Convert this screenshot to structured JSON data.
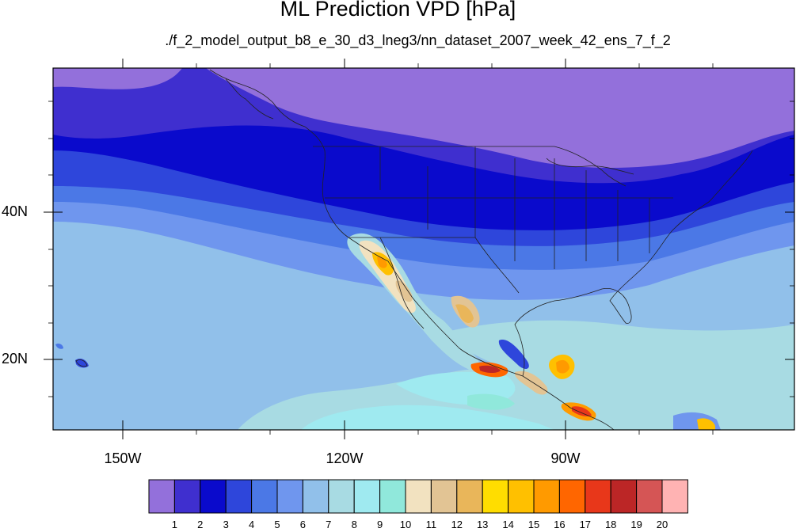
{
  "title": "ML Prediction VPD [hPa]",
  "subtitle": "./f_2_model_output_b8_e_30_d3_lneg3/nn_dataset_2007_week_42_ens_7_f_2",
  "map": {
    "lat_labels": [
      "40N",
      "20N"
    ],
    "lon_labels": [
      "150W",
      "120W",
      "90W"
    ]
  },
  "colorbar": {
    "ticks": [
      "1",
      "2",
      "3",
      "4",
      "5",
      "6",
      "7",
      "8",
      "9",
      "10",
      "11",
      "12",
      "13",
      "14",
      "15",
      "16",
      "17",
      "18",
      "19",
      "20"
    ],
    "colors": [
      "#9370DB",
      "#3F2FCF",
      "#0A0ACC",
      "#2E46DB",
      "#4B78E6",
      "#6F96EE",
      "#91C0EA",
      "#A8DBE3",
      "#9FEAF0",
      "#90E8DB",
      "#F2E2C0",
      "#E2C494",
      "#E9B65A",
      "#FFDD00",
      "#FFC000",
      "#FF9A00",
      "#FF6600",
      "#E8371A",
      "#BC2626",
      "#D55555",
      "#FFB3B3"
    ]
  }
}
